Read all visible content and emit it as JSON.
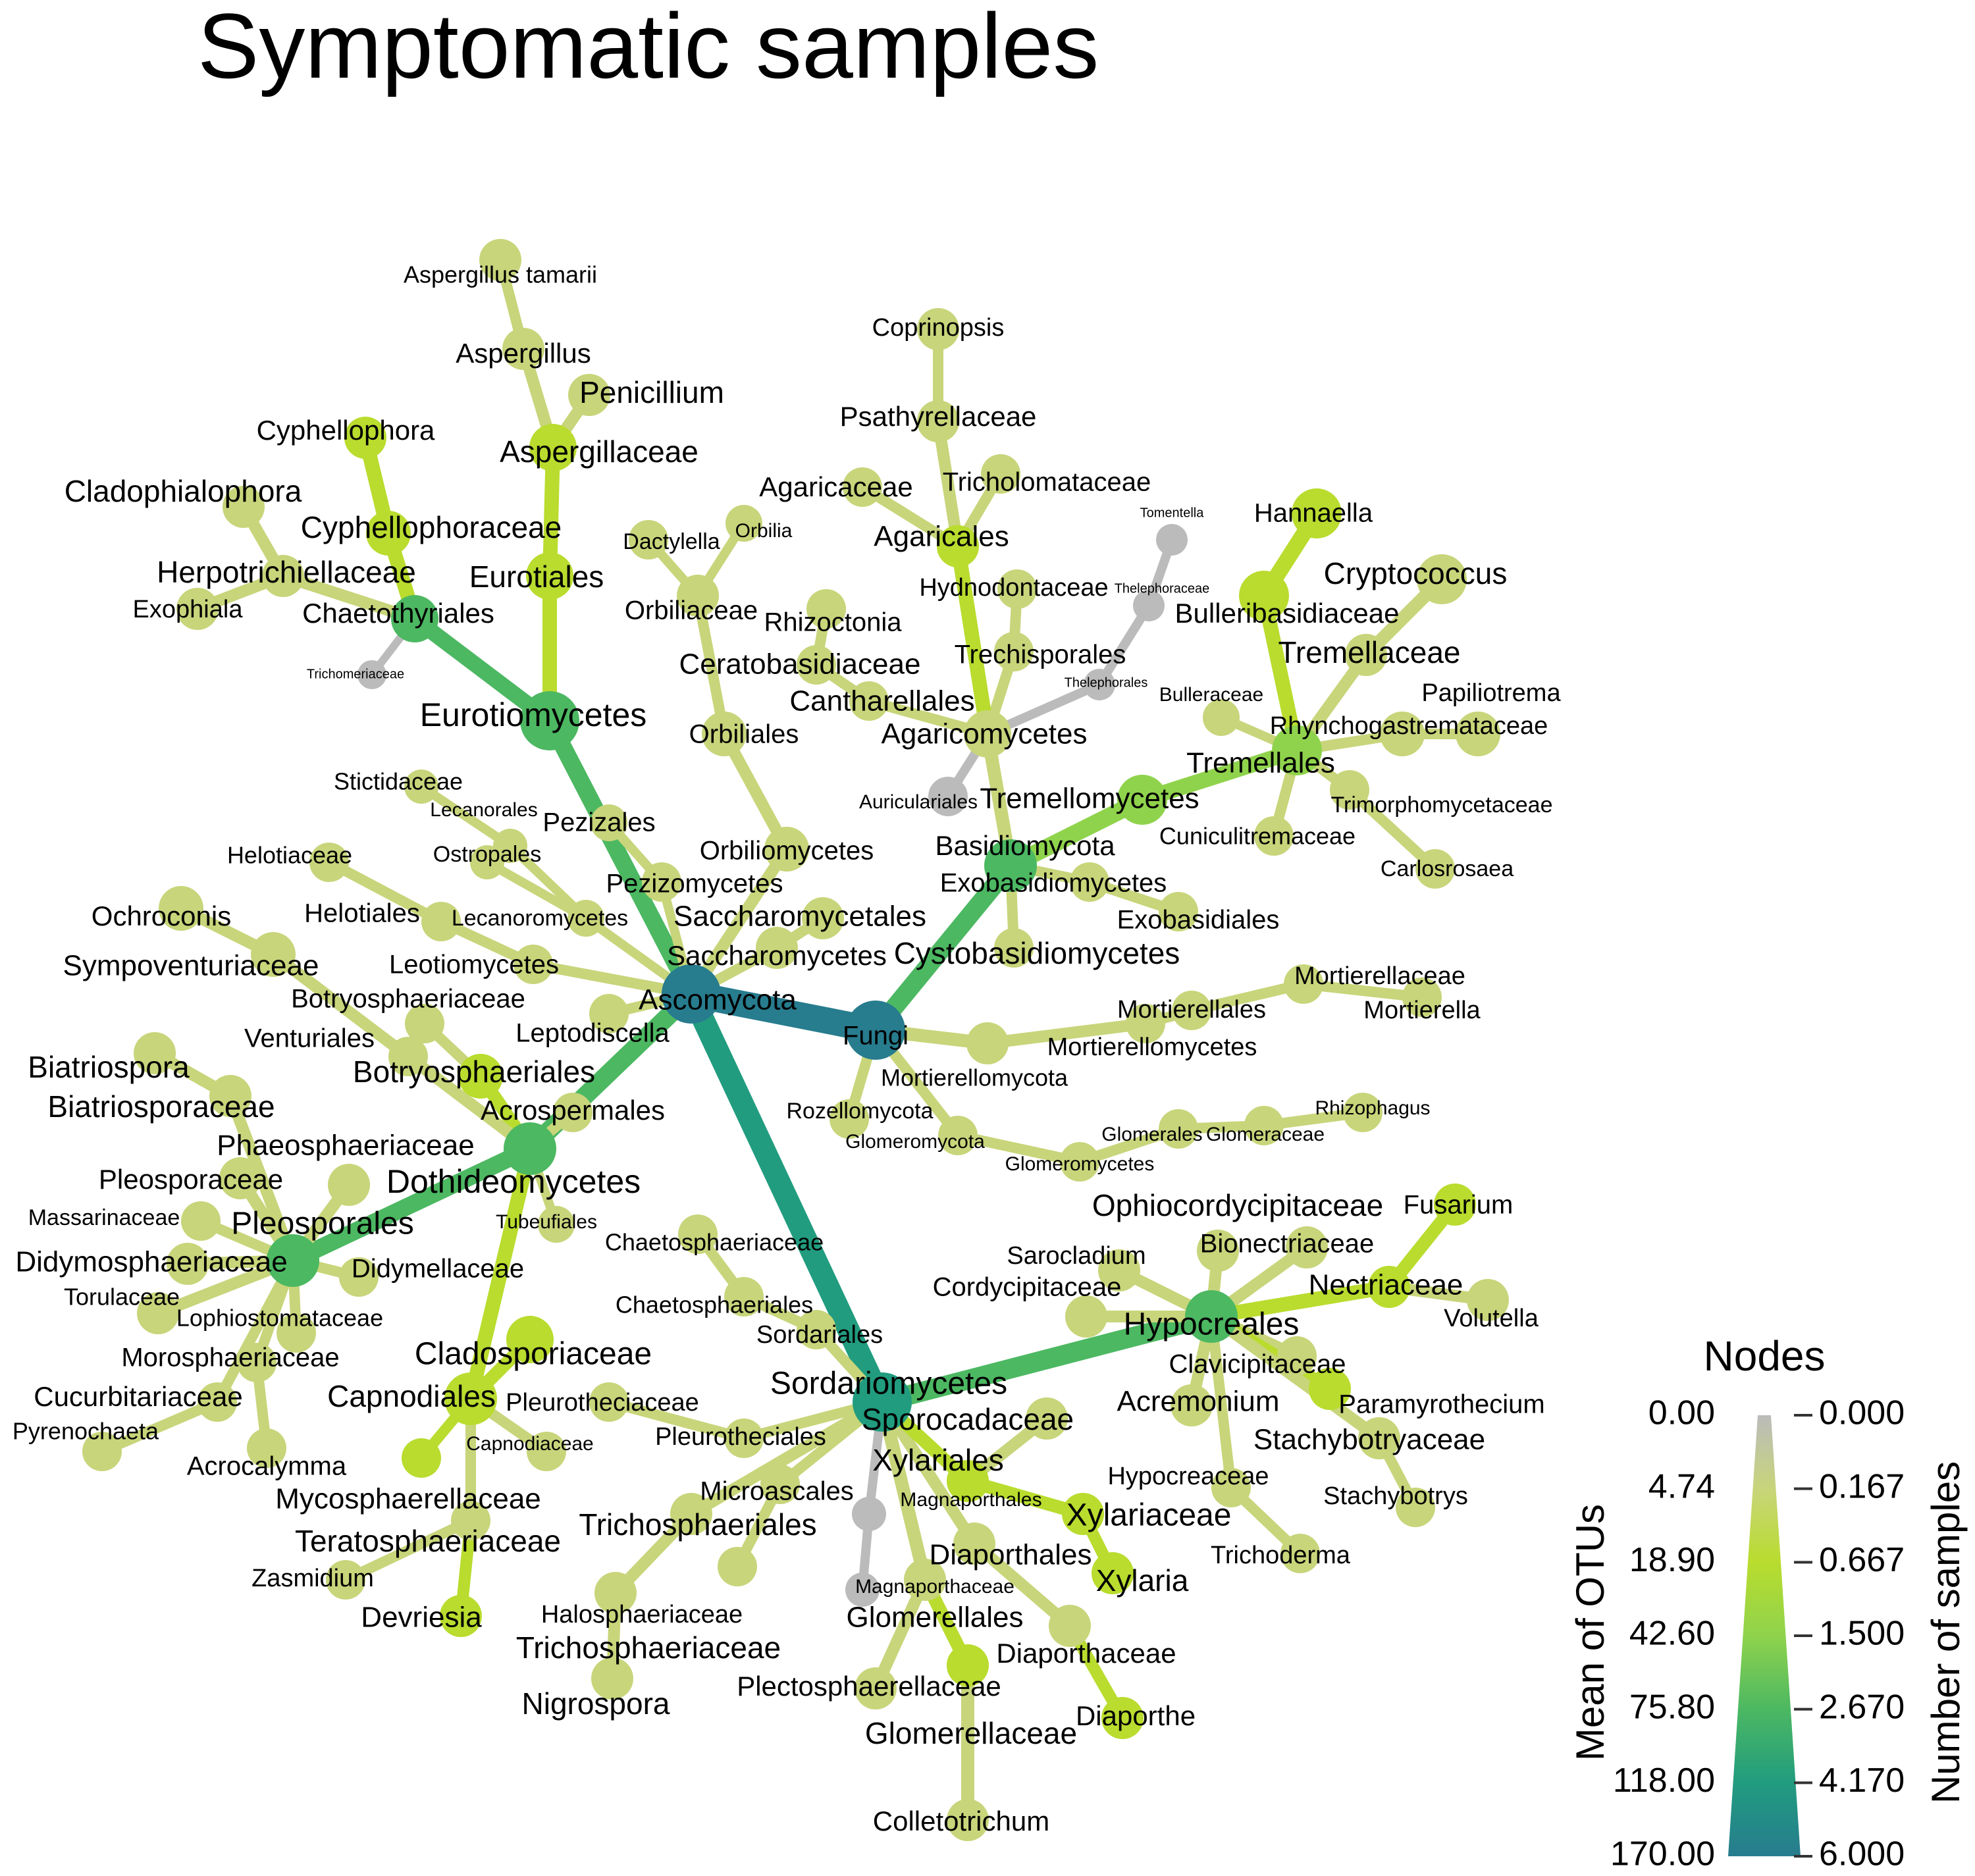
{
  "chart_data": {
    "type": "heat_tree",
    "title": "Symptomatic samples",
    "legend": {
      "title": "Nodes",
      "left_axis_label": "Mean of OTUs",
      "right_axis_label": "Number of samples",
      "left_ticks": [
        "0.00",
        "4.74",
        "18.90",
        "42.60",
        "75.80",
        "118.00",
        "170.00"
      ],
      "right_ticks": [
        "0.000",
        "0.167",
        "0.667",
        "1.500",
        "2.670",
        "4.170",
        "6.000"
      ],
      "colors": [
        "#bbbbbb",
        "#c8d57a",
        "#b9dc2e",
        "#8fd34c",
        "#4cb862",
        "#219c7f",
        "#277c8e"
      ]
    },
    "nodes": [
      {
        "name": "Fungi",
        "parent": "",
        "samples": 6.0,
        "otus": 120
      },
      {
        "name": "Ascomycota",
        "parent": "Fungi",
        "samples": 4.5,
        "otus": 90
      },
      {
        "name": "Basidiomycota",
        "parent": "Fungi",
        "samples": 1.6,
        "otus": 22
      },
      {
        "name": "Mortierellomycota",
        "parent": "Fungi",
        "samples": 0.4,
        "otus": 4
      },
      {
        "name": "Rozellomycota",
        "parent": "Fungi",
        "samples": 0.15,
        "otus": 1
      },
      {
        "name": "Glomeromycota",
        "parent": "Fungi",
        "samples": 0.2,
        "otus": 1
      },
      {
        "name": "Glomeromycetes",
        "parent": "Glomeromycota",
        "samples": 0.2,
        "otus": 1
      },
      {
        "name": "Glomerales",
        "parent": "Glomeromycetes",
        "samples": 0.2,
        "otus": 1
      },
      {
        "name": "Glomeraceae",
        "parent": "Glomerales",
        "samples": 0.15,
        "otus": 1
      },
      {
        "name": "Rhizophagus",
        "parent": "Glomeraceae",
        "samples": 0.1,
        "otus": 1
      },
      {
        "name": "Mortierellomycetes",
        "parent": "Mortierellomycota",
        "samples": 0.4,
        "otus": 4
      },
      {
        "name": "Mortierellales",
        "parent": "Mortierellomycetes",
        "samples": 0.4,
        "otus": 4
      },
      {
        "name": "Mortierellaceae",
        "parent": "Mortierellales",
        "samples": 0.4,
        "otus": 4
      },
      {
        "name": "Mortierella",
        "parent": "Mortierellaceae",
        "samples": 0.4,
        "otus": 4
      },
      {
        "name": "Dothideomycetes",
        "parent": "Ascomycota",
        "samples": 2.0,
        "otus": 40
      },
      {
        "name": "Sordariomycetes",
        "parent": "Ascomycota",
        "samples": 3.0,
        "otus": 35
      },
      {
        "name": "Eurotiomycetes",
        "parent": "Ascomycota",
        "samples": 1.5,
        "otus": 12
      },
      {
        "name": "Leotiomycetes",
        "parent": "Ascomycota",
        "samples": 0.3,
        "otus": 3
      },
      {
        "name": "Lecanoromycetes",
        "parent": "Ascomycota",
        "samples": 0.15,
        "otus": 1
      },
      {
        "name": "Pezizomycetes",
        "parent": "Ascomycota",
        "samples": 0.2,
        "otus": 2
      },
      {
        "name": "Orbiliomycetes",
        "parent": "Ascomycota",
        "samples": 0.3,
        "otus": 3
      },
      {
        "name": "Saccharomycetes",
        "parent": "Ascomycota",
        "samples": 0.3,
        "otus": 2
      },
      {
        "name": "Leptodiscella",
        "parent": "Ascomycota",
        "samples": 0.2,
        "otus": 1
      },
      {
        "name": "Tremellomycetes",
        "parent": "Basidiomycota",
        "samples": 0.8,
        "otus": 8
      },
      {
        "name": "Agaricomycetes",
        "parent": "Basidiomycota",
        "samples": 0.6,
        "otus": 6
      },
      {
        "name": "Exobasidiomycetes",
        "parent": "Basidiomycota",
        "samples": 0.2,
        "otus": 1
      },
      {
        "name": "Cystobasidiomycetes",
        "parent": "Basidiomycota",
        "samples": 0.2,
        "otus": 1
      },
      {
        "name": "Hypocreales",
        "parent": "Sordariomycetes",
        "samples": 1.0,
        "otus": 15
      },
      {
        "name": "Glomerellales",
        "parent": "Sordariomycetes",
        "samples": 0.5,
        "otus": 5
      },
      {
        "name": "Xylariales",
        "parent": "Sordariomycetes",
        "samples": 0.5,
        "otus": 6
      },
      {
        "name": "Pleosporales",
        "parent": "Dothideomycetes",
        "samples": 1.5,
        "otus": 20
      },
      {
        "name": "Capnodiales",
        "parent": "Dothideomycetes",
        "samples": 0.7,
        "otus": 10
      },
      {
        "name": "Botryosphaeriales",
        "parent": "Dothideomycetes",
        "samples": 0.4,
        "otus": 3
      }
    ]
  },
  "labels": {
    "Fungi": "Fungi",
    "Ascomycota": "Ascomycota",
    "Basidiomycota": "Basidiomycota",
    "Mortierellomycota": "Mortierellomycota",
    "Mortierellomycetes": "Mortierellomycetes",
    "Mortierellales": "Mortierellales",
    "Mortierellaceae": "Mortierellaceae",
    "Mortierella": "Mortierella",
    "Rozellomycota": "Rozellomycota",
    "Glomeromycota": "Glomeromycota",
    "Glomeromycetes": "Glomeromycetes",
    "Glomerales": "Glomerales",
    "Glomeraceae": "Glomeraceae",
    "Rhizophagus": "Rhizophagus",
    "Cystobasidiomycetes": "Cystobasidiomycetes",
    "Exobasidiomycetes": "Exobasidiomycetes",
    "Exobasidiales": "Exobasidiales",
    "Tremellomycetes": "Tremellomycetes",
    "Tremellales": "Tremellales",
    "Rhynchogastremataceae": "Rhynchogastremataceae",
    "Papiliotrema": "Papiliotrema",
    "Trimorphomycetaceae": "Trimorphomycetaceae",
    "Cuniculitremaceae": "Cuniculitremaceae",
    "Carlosrosaea": "Carlosrosaea",
    "Bulleraceae": "Bulleraceae",
    "Tremellaceae": "Tremellaceae",
    "Bulleribasidiaceae": "Bulleribasidiaceae",
    "Hannaella": "Hannaella",
    "Cryptococcus": "Cryptococcus",
    "Agaricomycetes": "Agaricomycetes",
    "Auriculariales": "Auriculariales",
    "Cantharellales": "Cantharellales",
    "Ceratobasidiaceae": "Ceratobasidiaceae",
    "Rhizoctonia": "Rhizoctonia",
    "Trechisporales": "Trechisporales",
    "Hydnodontaceae": "Hydnodontaceae",
    "Thelephorales": "Thelephorales",
    "Thelephoraceae": "Thelephoraceae",
    "Tomentella": "Tomentella",
    "Agaricales": "Agaricales",
    "Agaricaceae": "Agaricaceae",
    "Tricholomataceae": "Tricholomataceae",
    "Psathyrellaceae": "Psathyrellaceae",
    "Coprinopsis": "Coprinopsis",
    "Eurotiomycetes": "Eurotiomycetes",
    "Eurotiales": "Eurotiales",
    "Aspergillaceae": "Aspergillaceae",
    "Penicillium": "Penicillium",
    "Aspergillus": "Aspergillus",
    "Aspergillus_tamarii": "Aspergillus tamarii",
    "Chaetothyriales": "Chaetothyriales",
    "Cyphellophoraceae": "Cyphellophoraceae",
    "Cyphellophora": "Cyphellophora",
    "Herpotrichiellaceae": "Herpotrichiellaceae",
    "Cladophialophora": "Cladophialophora",
    "Exophiala": "Exophiala",
    "Trichomeriaceae": "Trichomeriaceae",
    "Orbiliomycetes": "Orbiliomycetes",
    "Orbiliales": "Orbiliales",
    "Orbiliaceae": "Orbiliaceae",
    "Dactylella": "Dactylella",
    "Orbilia": "Orbilia",
    "Pezizomycetes": "Pezizomycetes",
    "Pezizales": "Pezizales",
    "Saccharomycetes": "Saccharomycetes",
    "Saccharomycetales": "Saccharomycetales",
    "Lecanoromycetes": "Lecanoromycetes",
    "Lecanorales": "Lecanorales",
    "Ostropales": "Ostropales",
    "Stictidaceae": "Stictidaceae",
    "Leotiomycetes": "Leotiomycetes",
    "Helotiales": "Helotiales",
    "Helotiaceae": "Helotiaceae",
    "Leptodiscella": "Leptodiscella",
    "Dothideomycetes": "Dothideomycetes",
    "Acrospermales": "Acrospermales",
    "Botryosphaeriales": "Botryosphaeriales",
    "Botryosphaeriaceae": "Botryosphaeriaceae",
    "Venturiales": "Venturiales",
    "Sympoventuriaceae": "Sympoventuriaceae",
    "Ochroconis": "Ochroconis",
    "Tubeufiales": "Tubeufiales",
    "Pleosporales": "Pleosporales",
    "Phaeosphaeriaceae": "Phaeosphaeriaceae",
    "Pleosporaceae": "Pleosporaceae",
    "Massarinaceae": "Massarinaceae",
    "Didymosphaeriaceae": "Didymosphaeriaceae",
    "Torulaceae": "Torulaceae",
    "Didymellaceae": "Didymellaceae",
    "Lophiostomataceae": "Lophiostomataceae",
    "Morosphaeriaceae": "Morosphaeriaceae",
    "Cucurbitariaceae": "Cucurbitariaceae",
    "Pyrenochaeta": "Pyrenochaeta",
    "Acrocalymma": "Acrocalymma",
    "Biatriospora": "Biatriospora",
    "Biatriosporaceae": "Biatriosporaceae",
    "Capnodiales": "Capnodiales",
    "Cladosporiaceae": "Cladosporiaceae",
    "Capnodiaceae": "Capnodiaceae",
    "Mycosphaerellaceae": "Mycosphaerellaceae",
    "Teratosphaeriaceae": "Teratosphaeriaceae",
    "Zasmidium": "Zasmidium",
    "Devriesia": "Devriesia",
    "Sordariomycetes": "Sordariomycetes",
    "Sordariales": "Sordariales",
    "Chaetosphaeriales": "Chaetosphaeriales",
    "Chaetosphaeriaceae": "Chaetosphaeriaceae",
    "Pleurotheciales": "Pleurotheciales",
    "Pleurotheciaceae": "Pleurotheciaceae",
    "Microascales": "Microascales",
    "Halosphaeriaceae": "Halosphaeriaceae",
    "Trichosphaeriales": "Trichosphaeriales",
    "Trichosphaeriaceae": "Trichosphaeriaceae",
    "Nigrospora": "Nigrospora",
    "Magnaporthales": "Magnaporthales",
    "Magnaporthaceae": "Magnaporthaceae",
    "Glomerellales": "Glomerellales",
    "Plectosphaerellaceae": "Plectosphaerellaceae",
    "Glomerellaceae": "Glomerellaceae",
    "Colletotrichum": "Colletotrichum",
    "Diaporthales": "Diaporthales",
    "Diaporthaceae": "Diaporthaceae",
    "Diaporthe": "Diaporthe",
    "Xylariales": "Xylariales",
    "Sporocadaceae": "Sporocadaceae",
    "Xylariaceae": "Xylariaceae",
    "Xylaria": "Xylaria",
    "Hypocreales": "Hypocreales",
    "Ophiocordycipitaceae": "Ophiocordycipitaceae",
    "Sarocladium": "Sarocladium",
    "Bionectriaceae": "Bionectriaceae",
    "Cordycipitaceae": "Cordycipitaceae",
    "Nectriaceae": "Nectriaceae",
    "Fusarium": "Fusarium",
    "Volutella": "Volutella",
    "Clavicipitaceae": "Clavicipitaceae",
    "Acremonium": "Acremonium",
    "Paramyrothecium": "Paramyrothecium",
    "Stachybotryaceae": "Stachybotryaceae",
    "Stachybotrys": "Stachybotrys",
    "Hypocreaceae": "Hypocreaceae",
    "Trichoderma": "Trichoderma"
  }
}
